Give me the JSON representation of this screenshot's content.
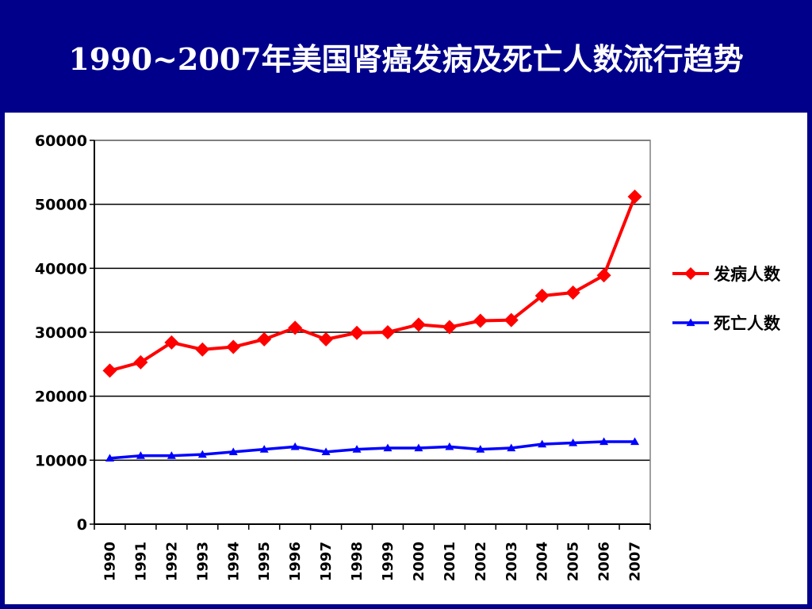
{
  "slide": {
    "title": "1990~2007年美国肾癌发病及死亡人数流行趋势"
  },
  "chart_data": {
    "type": "line",
    "x": [
      "1990",
      "1991",
      "1992",
      "1993",
      "1994",
      "1995",
      "1996",
      "1997",
      "1998",
      "1999",
      "2000",
      "2001",
      "2002",
      "2003",
      "2004",
      "2005",
      "2006",
      "2007"
    ],
    "ylim": [
      0,
      60000
    ],
    "yticks": [
      "0",
      "10000",
      "20000",
      "30000",
      "40000",
      "50000",
      "60000"
    ],
    "grid": true,
    "legend_position": "right",
    "series": [
      {
        "name": "发病人数",
        "color": "#ff0000",
        "marker": "diamond",
        "values": [
          24000,
          25300,
          28400,
          27300,
          27700,
          28900,
          30700,
          28900,
          29900,
          30000,
          31200,
          30800,
          31800,
          31900,
          35700,
          36200,
          38900,
          51200
        ]
      },
      {
        "name": "死亡人数",
        "color": "#0000ff",
        "marker": "triangle",
        "values": [
          10300,
          10700,
          10700,
          10900,
          11300,
          11700,
          12100,
          11300,
          11700,
          11900,
          11900,
          12100,
          11700,
          11900,
          12500,
          12700,
          12900,
          12900
        ]
      }
    ]
  }
}
